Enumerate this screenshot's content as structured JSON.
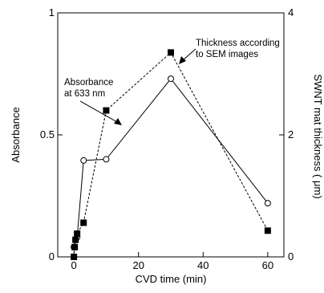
{
  "chart_data": {
    "type": "line",
    "xlabel": "CVD time (min)",
    "ylabel_left": "Absorbance",
    "ylabel_right": "SWNT mat thickness ( μm)",
    "xlim": [
      -5,
      65
    ],
    "ylim_left": [
      0,
      1
    ],
    "ylim_right": [
      0,
      4
    ],
    "x_ticks": [
      0,
      20,
      40,
      60
    ],
    "y_left_ticks": [
      {
        "value": 0,
        "label": "0"
      },
      {
        "value": 0.5,
        "label": "0.5"
      },
      {
        "value": 1,
        "label": "1"
      }
    ],
    "y_right_ticks": [
      {
        "value": 0,
        "label": "0"
      },
      {
        "value": 2,
        "label": "2"
      },
      {
        "value": 4,
        "label": "4"
      }
    ],
    "series": [
      {
        "name": "Absorbance at 633 nm",
        "axis": "left",
        "marker": "open-circle",
        "line_style": "solid",
        "x": [
          0,
          0.5,
          1,
          3,
          10,
          30,
          60
        ],
        "y": [
          0.04,
          0.07,
          0.08,
          0.395,
          0.4,
          0.73,
          0.22
        ]
      },
      {
        "name": "Thickness according to SEM images",
        "axis": "right",
        "marker": "filled-square",
        "line_style": "dashed",
        "x": [
          0,
          0.25,
          0.5,
          1,
          3,
          10,
          30,
          60
        ],
        "y": [
          0,
          0.16,
          0.28,
          0.38,
          0.56,
          2.4,
          3.35,
          0.43
        ]
      }
    ],
    "annotations": [
      {
        "lines": [
          "Absorbance",
          "at 633 nm"
        ],
        "series": 0
      },
      {
        "lines": [
          "Thickness according",
          "to SEM images"
        ],
        "series": 1
      }
    ],
    "grid": false
  }
}
